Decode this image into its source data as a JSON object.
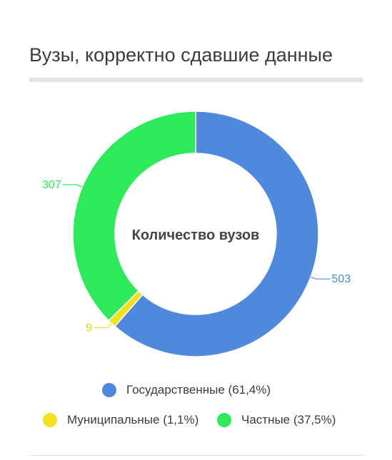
{
  "header": {
    "title": "Вузы, корректно сдавшие данные"
  },
  "chart_data": {
    "type": "pie",
    "donut": true,
    "center_label": "Количество вузов",
    "categories": [
      "Государственные",
      "Муниципальные",
      "Частные"
    ],
    "values": [
      503,
      9,
      307
    ],
    "percent_labels": [
      "61,4%",
      "1,1%",
      "37,5%"
    ],
    "colors": [
      "#4f89dd",
      "#f2e21b",
      "#2eea5b"
    ],
    "legend": {
      "placement": "bottom",
      "entries": [
        "Государственные (61,4%)",
        "Муниципальные (1,1%)",
        "Частные (37,5%)"
      ]
    }
  }
}
